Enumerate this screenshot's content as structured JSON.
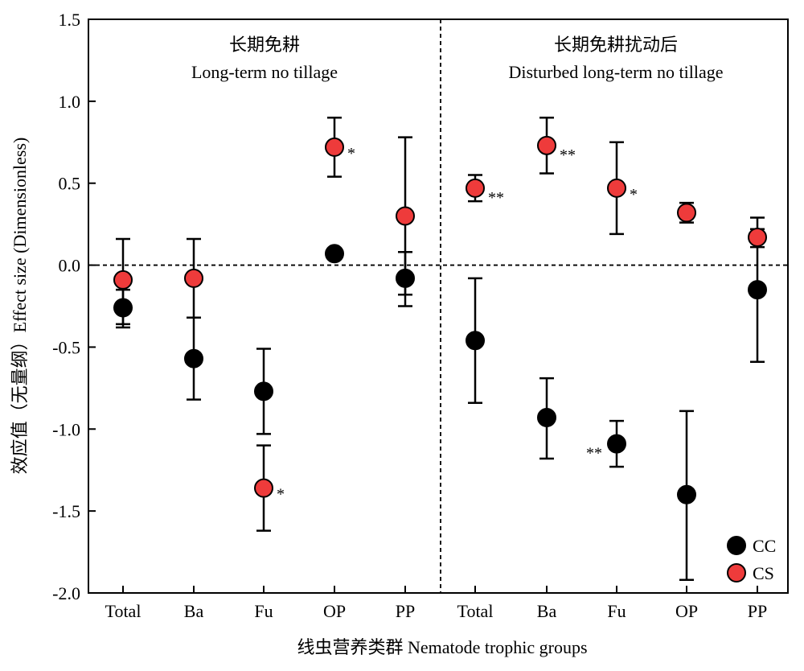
{
  "chart_data": {
    "type": "scatter",
    "xlabel": "线虫营养类群 Nematode trophic groups",
    "ylabel": "效应值（无量纲）Effect size (Dimensionless)",
    "ylim": [
      -2.0,
      1.5
    ],
    "yticks": [
      "-2.0",
      "-1.5",
      "-1.0",
      "-0.5",
      "0.0",
      "0.5",
      "1.0",
      "1.5"
    ],
    "categories": [
      "Total",
      "Ba",
      "Fu",
      "OP",
      "PP",
      "Total",
      "Ba",
      "Fu",
      "OP",
      "PP"
    ],
    "reference_line": 0,
    "panels": [
      {
        "title_cn": "长期免耕",
        "title_en": "Long-term no tillage"
      },
      {
        "title_cn": "长期免耕扰动后",
        "title_en": "Disturbed long-term no tillage"
      }
    ],
    "series": [
      {
        "name": "CC",
        "color": "#000000",
        "values": [
          -0.26,
          -0.57,
          -0.77,
          0.07,
          -0.08,
          -0.46,
          -0.93,
          -1.09,
          -1.4,
          -0.15
        ],
        "err_low": [
          -0.36,
          -0.82,
          -1.03,
          null,
          -0.25,
          -0.84,
          -1.18,
          -1.23,
          -1.92,
          -0.59
        ],
        "err_high": [
          -0.15,
          -0.32,
          -0.51,
          null,
          0.08,
          -0.08,
          -0.69,
          -0.95,
          -0.89,
          0.22
        ],
        "sig": [
          "",
          "",
          "",
          "",
          "",
          "",
          "",
          "**",
          "",
          ""
        ]
      },
      {
        "name": "CS",
        "color": "#ee3b3b",
        "values": [
          -0.09,
          -0.08,
          -1.36,
          0.72,
          0.3,
          0.47,
          0.73,
          0.47,
          0.32,
          0.17
        ],
        "err_low": [
          -0.38,
          -0.32,
          -1.62,
          0.54,
          -0.18,
          0.39,
          0.56,
          0.19,
          0.26,
          0.11
        ],
        "err_high": [
          0.16,
          0.16,
          -1.1,
          0.9,
          0.78,
          0.55,
          0.9,
          0.75,
          0.38,
          0.29
        ],
        "sig": [
          "",
          "",
          "*",
          "*",
          "",
          "**",
          "**",
          "*",
          "",
          ""
        ]
      }
    ],
    "legend_placement": "bottom-right"
  }
}
